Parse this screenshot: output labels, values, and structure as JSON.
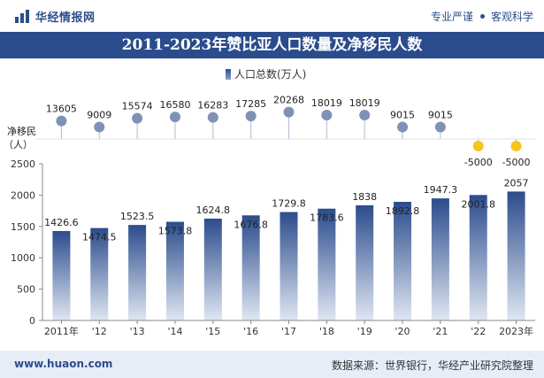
{
  "header": {
    "brand_name": "华经情报网",
    "tag_left": "专业严谨",
    "tag_right": "客观科学"
  },
  "footer": {
    "website": "www.huaon.com",
    "source": "数据来源：世界银行，华经产业研究院整理"
  },
  "colors": {
    "brand_blue": "#2b4c8c",
    "bar_top": "#2b4c8c",
    "bar_bottom": "#dfe6f2",
    "marker_positive": "#7f92b5",
    "marker_negative": "#f5c518",
    "footer_bg": "#e6edf7"
  },
  "chart_data": [
    {
      "type": "bar",
      "title": "2011-2023年赞比亚人口数量及净移民人数",
      "legend": {
        "label": "人口总数(万人)",
        "position": "top-center"
      },
      "categories": [
        "2011年",
        "'12",
        "'13",
        "'14",
        "'15",
        "'16",
        "'17",
        "'18",
        "'19",
        "'20",
        "'21",
        "'22",
        "2023年"
      ],
      "series": [
        {
          "name": "人口总数(万人)",
          "values": [
            1426.6,
            1474.5,
            1523.5,
            1573.8,
            1624.8,
            1676.8,
            1729.8,
            1783.6,
            1838,
            1892.8,
            1947.3,
            2001.8,
            2057
          ]
        }
      ],
      "ylim": [
        0,
        2500
      ],
      "yticks": [
        0,
        500,
        1000,
        1500,
        2000,
        2500
      ],
      "grid": false
    },
    {
      "type": "scatter",
      "ylabel_lines": [
        "净移民",
        "（人）"
      ],
      "categories": [
        "2011年",
        "'12",
        "'13",
        "'14",
        "'15",
        "'16",
        "'17",
        "'18",
        "'19",
        "'20",
        "'21",
        "'22",
        "2023年"
      ],
      "series": [
        {
          "values": [
            13605,
            9009,
            15574,
            16580,
            16283,
            17285,
            20268,
            18019,
            18019,
            9015,
            9015,
            -5000,
            -5000
          ]
        }
      ],
      "ylim": [
        -6000,
        22000
      ]
    }
  ]
}
